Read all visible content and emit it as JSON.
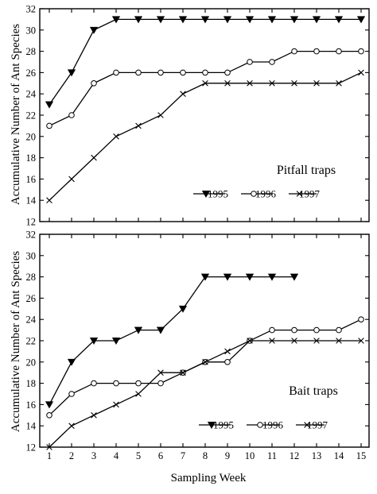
{
  "figure": {
    "ylabel": "Accumulative Number of Ant Species",
    "xlabel": "Sampling Week"
  },
  "chart_data": [
    {
      "type": "line",
      "title": "Pitfall traps",
      "xlabel": "Sampling Week",
      "ylabel": "Accumulative Number of Ant Species",
      "x": [
        1,
        2,
        3,
        4,
        5,
        6,
        7,
        8,
        9,
        10,
        11,
        12,
        13,
        14,
        15
      ],
      "xlim": [
        1,
        15
      ],
      "ylim": [
        12,
        32
      ],
      "yticks": [
        12,
        14,
        16,
        18,
        20,
        22,
        24,
        26,
        28,
        30,
        32
      ],
      "show_xtick_labels": false,
      "grid": false,
      "legend": "bottom-right",
      "series": [
        {
          "name": "1995",
          "marker": "triangle-down-filled",
          "values": [
            23,
            26,
            30,
            31,
            31,
            31,
            31,
            31,
            31,
            31,
            31,
            31,
            31,
            31,
            31
          ]
        },
        {
          "name": "1996",
          "marker": "circle-open",
          "values": [
            21,
            22,
            25,
            26,
            26,
            26,
            26,
            26,
            26,
            27,
            27,
            28,
            28,
            28,
            28
          ]
        },
        {
          "name": "1997",
          "marker": "x",
          "values": [
            14,
            16,
            18,
            20,
            21,
            22,
            24,
            25,
            25,
            25,
            25,
            25,
            25,
            25,
            26
          ]
        }
      ]
    },
    {
      "type": "line",
      "title": "Bait traps",
      "xlabel": "Sampling Week",
      "ylabel": "Accumulative Number of Ant Species",
      "x": [
        1,
        2,
        3,
        4,
        5,
        6,
        7,
        8,
        9,
        10,
        11,
        12,
        13,
        14,
        15
      ],
      "xlim": [
        1,
        15
      ],
      "ylim": [
        12,
        32
      ],
      "yticks": [
        12,
        14,
        16,
        18,
        20,
        22,
        24,
        26,
        28,
        30,
        32
      ],
      "xticks": [
        "1",
        "2",
        "3",
        "4",
        "5",
        "6",
        "7",
        "8",
        "9",
        "10",
        "11",
        "12",
        "13",
        "14",
        "15"
      ],
      "show_xtick_labels": true,
      "grid": false,
      "legend": "bottom-right",
      "series": [
        {
          "name": "1995",
          "marker": "triangle-down-filled",
          "values": [
            16,
            20,
            22,
            22,
            23,
            23,
            25,
            28,
            28,
            28,
            28,
            28,
            null,
            null,
            null
          ]
        },
        {
          "name": "1996",
          "marker": "circle-open",
          "values": [
            15,
            17,
            18,
            18,
            18,
            18,
            19,
            20,
            20,
            22,
            23,
            23,
            23,
            23,
            24
          ]
        },
        {
          "name": "1997",
          "marker": "x",
          "values": [
            12,
            14,
            15,
            16,
            17,
            19,
            19,
            20,
            21,
            22,
            22,
            22,
            22,
            22,
            22
          ]
        }
      ]
    }
  ]
}
